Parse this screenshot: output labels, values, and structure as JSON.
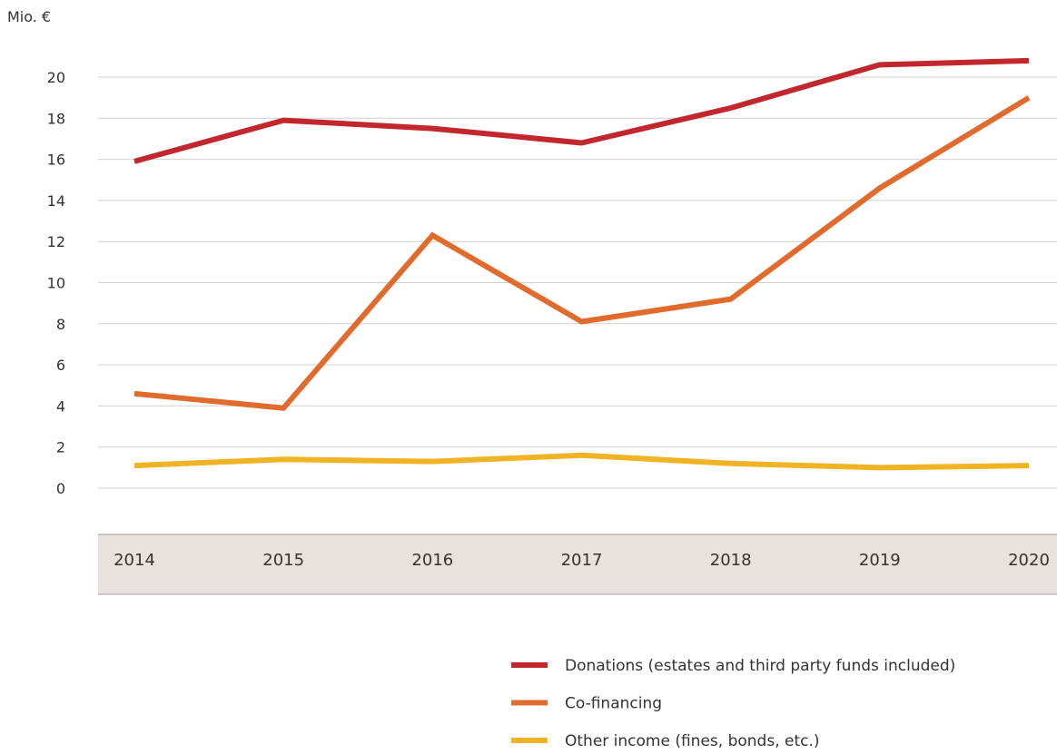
{
  "chart_data": {
    "type": "line",
    "ylabel": "Mio. €",
    "ylim": [
      0,
      20
    ],
    "yticks": [
      0,
      2,
      4,
      6,
      8,
      10,
      12,
      14,
      16,
      18,
      20
    ],
    "categories": [
      "2014",
      "2015",
      "2016",
      "2017",
      "2018",
      "2019",
      "2020"
    ],
    "grid": true,
    "legend_position": "bottom-right",
    "series": [
      {
        "name": "Donations (estates and third party funds included)",
        "color": "#c1272d",
        "values": [
          15.9,
          17.9,
          17.5,
          16.8,
          18.5,
          20.6,
          20.8
        ]
      },
      {
        "name": "Co-financing",
        "color": "#e06b2c",
        "values": [
          4.6,
          3.9,
          12.3,
          8.1,
          9.2,
          14.6,
          19.0
        ]
      },
      {
        "name": "Other income (fines, bonds, etc.)",
        "color": "#f0b323",
        "values": [
          1.1,
          1.4,
          1.3,
          1.6,
          1.2,
          1.0,
          1.1
        ]
      }
    ],
    "axis_band_color": "#e8e2dd",
    "grid_color": "#d0d0d0"
  }
}
